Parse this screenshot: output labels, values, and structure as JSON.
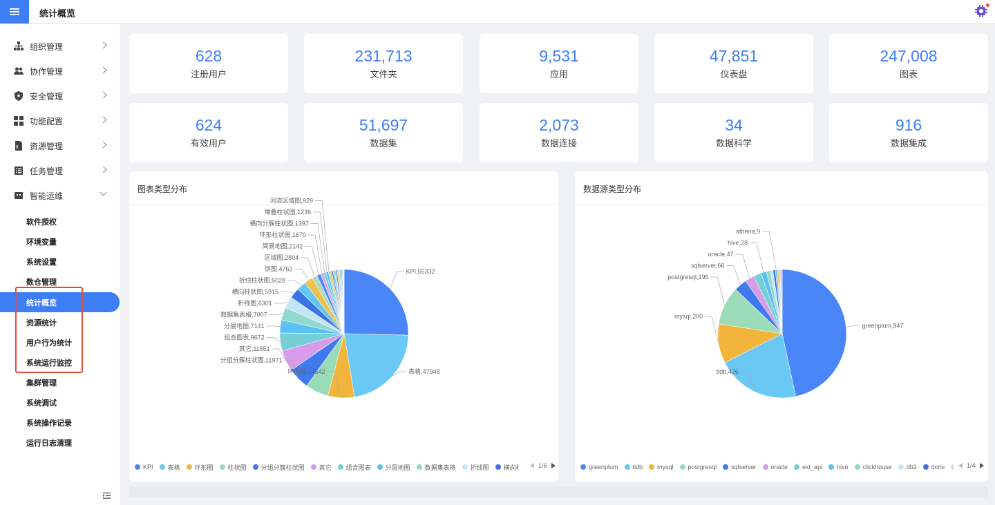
{
  "header": {
    "title": "统计概览"
  },
  "sidebar": {
    "items": [
      {
        "label": "组织管理",
        "icon": "org-icon"
      },
      {
        "label": "协作管理",
        "icon": "users-icon"
      },
      {
        "label": "安全管理",
        "icon": "shield-icon"
      },
      {
        "label": "功能配置",
        "icon": "grid-icon"
      },
      {
        "label": "资源管理",
        "icon": "file-icon"
      },
      {
        "label": "任务管理",
        "icon": "list-icon"
      },
      {
        "label": "智能运维",
        "icon": "robot-icon"
      }
    ],
    "subitems": [
      "软件授权",
      "环境变量",
      "系统设置",
      "数仓管理",
      "统计概览",
      "资源统计",
      "用户行为统计",
      "系统运行监控",
      "集群管理",
      "系统调试",
      "系统操作记录",
      "运行日志清理"
    ],
    "active": "统计概览"
  },
  "stats": [
    {
      "value": "628",
      "label": "注册用户"
    },
    {
      "value": "231,713",
      "label": "文件夹"
    },
    {
      "value": "9,531",
      "label": "应用"
    },
    {
      "value": "47,851",
      "label": "仪表盘"
    },
    {
      "value": "247,008",
      "label": "图表"
    },
    {
      "value": "624",
      "label": "有效用户"
    },
    {
      "value": "51,697",
      "label": "数据集"
    },
    {
      "value": "2,073",
      "label": "数据连接"
    },
    {
      "value": "34",
      "label": "数据科学"
    },
    {
      "value": "916",
      "label": "数据集成"
    }
  ],
  "chart_data": [
    {
      "type": "pie",
      "title": "图表类型分布",
      "slices": [
        {
          "name": "KPI",
          "value": 55332,
          "color": "#4a86f7"
        },
        {
          "name": "表格",
          "value": 47948,
          "color": "#6ac8f5"
        },
        {
          "name": "环形图",
          "value": 14542,
          "color": "#f3b43c"
        },
        {
          "name": "柱状图",
          "value": 12700,
          "color": "#9adbb8"
        },
        {
          "name": "分组分簇柱状图",
          "value": 11971,
          "color": "#3f79ee"
        },
        {
          "name": "其它",
          "value": 11551,
          "color": "#d79ce9"
        },
        {
          "name": "组合图表",
          "value": 9672,
          "color": "#76cfd6"
        },
        {
          "name": "分层地图",
          "value": 7141,
          "color": "#5bc1f2"
        },
        {
          "name": "数据集表格",
          "value": 7007,
          "color": "#8fd9cf"
        },
        {
          "name": "折线图",
          "value": 6301,
          "color": "#c5e5f7"
        },
        {
          "name": "横向柱状图",
          "value": 5915,
          "color": "#3a73e4"
        },
        {
          "name": "折线柱状图",
          "value": 5028,
          "color": "#62c7f1"
        },
        {
          "name": "饼图",
          "value": 4762,
          "color": "#f0c04a"
        },
        {
          "name": "区域图",
          "value": 2804,
          "color": "#a6dcc2"
        },
        {
          "name": "简易地图",
          "value": 2142,
          "color": "#4f88f2"
        },
        {
          "name": "环形柱状图",
          "value": 1670,
          "color": "#d3a6ea"
        },
        {
          "name": "横向分簇柱状图",
          "value": 1397,
          "color": "#71cbd8"
        },
        {
          "name": "堆叠柱状图",
          "value": 1236,
          "color": "#56bdf0"
        },
        {
          "name": "河流区域图",
          "value": 929,
          "color": "#95d8cd"
        },
        {
          "name": "",
          "value": 900,
          "color": "#f3b43c"
        },
        {
          "name": "",
          "value": 850,
          "color": "#4a86f7"
        },
        {
          "name": "",
          "value": 800,
          "color": "#6ac8f5"
        },
        {
          "name": "",
          "value": 750,
          "color": "#9adbb8"
        },
        {
          "name": "",
          "value": 700,
          "color": "#3f79ee"
        },
        {
          "name": "",
          "value": 650,
          "color": "#f0c04a"
        },
        {
          "name": "",
          "value": 600,
          "color": "#d79ce9"
        },
        {
          "name": "",
          "value": 550,
          "color": "#76cfd6"
        },
        {
          "name": "",
          "value": 500,
          "color": "#5bc1f2"
        },
        {
          "name": "",
          "value": 450,
          "color": "#3a73e4"
        },
        {
          "name": "",
          "value": 400,
          "color": "#8fd9cf"
        },
        {
          "name": "",
          "value": 350,
          "color": "#f3b43c"
        },
        {
          "name": "",
          "value": 300,
          "color": "#c5e5f7"
        }
      ],
      "labeled": [
        "KPI",
        "表格",
        "环形图",
        "分组分簇柱状图",
        "其它",
        "组合图表",
        "分层地图",
        "数据集表格",
        "折线图",
        "横向柱状图",
        "折线柱状图",
        "饼图",
        "区域图",
        "简易地图",
        "环形柱状图",
        "横向分簇柱状图",
        "堆叠柱状图",
        "河流区域图"
      ],
      "legend": [
        "KPI",
        "表格",
        "环形图",
        "柱状图",
        "分组分簇柱状图",
        "其它",
        "组合图表",
        "分层地图",
        "数据集表格",
        "折线图",
        "横向柱状图"
      ],
      "page": "1/6"
    },
    {
      "type": "pie",
      "title": "数据源类型分布",
      "slices": [
        {
          "name": "greenplum",
          "value": 947,
          "color": "#4a86f7"
        },
        {
          "name": "tidb",
          "value": 426,
          "color": "#6ac8f5"
        },
        {
          "name": "mysql",
          "value": 200,
          "color": "#f3b43c"
        },
        {
          "name": "postgresql",
          "value": 196,
          "color": "#9adbb8"
        },
        {
          "name": "sqlserver",
          "value": 66,
          "color": "#3f79ee"
        },
        {
          "name": "oracle",
          "value": 47,
          "color": "#d79ce9"
        },
        {
          "name": "ext_api",
          "value": 40,
          "color": "#76cfd6"
        },
        {
          "name": "hive",
          "value": 28,
          "color": "#5bc1f2"
        },
        {
          "name": "clickhouse",
          "value": 20,
          "color": "#8fd9cf"
        },
        {
          "name": "db2",
          "value": 14,
          "color": "#c5e5f7"
        },
        {
          "name": "doris",
          "value": 12,
          "color": "#3a73e4"
        },
        {
          "name": "athena",
          "value": 9,
          "color": "#62c7f1"
        },
        {
          "name": "",
          "value": 8,
          "color": "#f0c04a"
        },
        {
          "name": "",
          "value": 7,
          "color": "#a6dcc2"
        },
        {
          "name": "",
          "value": 6,
          "color": "#d3a6ea"
        },
        {
          "name": "",
          "value": 5,
          "color": "#71cbd8"
        }
      ],
      "labeled": [
        "greenplum",
        "tidb",
        "mysql",
        "postgresql",
        "sqlserver",
        "oracle",
        "hive",
        "athena"
      ],
      "legend": [
        "greenplum",
        "tidb",
        "mysql",
        "postgresql",
        "sqlserver",
        "oracle",
        "ext_api",
        "hive",
        "clickhouse",
        "db2",
        "doris",
        "dameng"
      ],
      "page": "1/4"
    }
  ]
}
